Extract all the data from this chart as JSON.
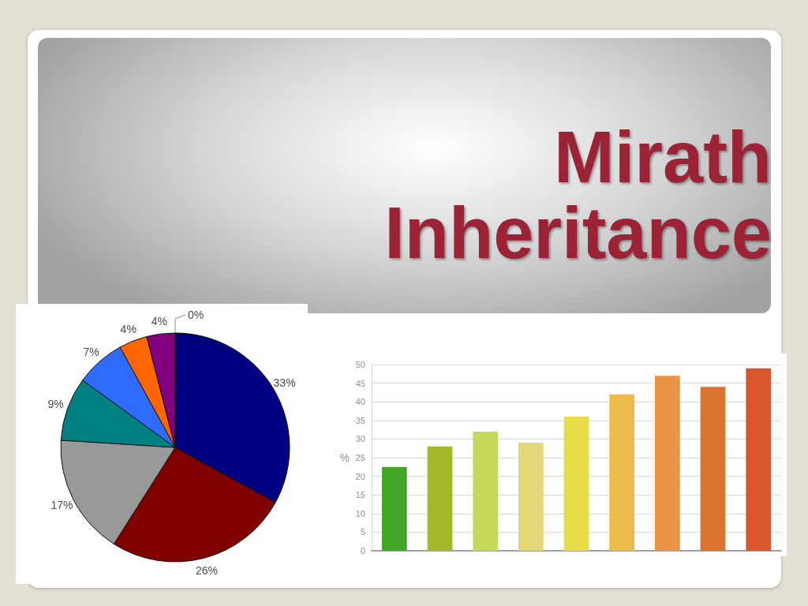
{
  "chart_data": [
    {
      "type": "pie",
      "title": "Mirath Inheritance",
      "categories": [
        null,
        null,
        null,
        null,
        null,
        null,
        null,
        null
      ],
      "values": [
        33,
        26,
        17,
        9,
        7,
        4,
        4,
        0
      ],
      "colors": [
        "#000080",
        "#800000",
        "#999999",
        "#008080",
        "#2f6bff",
        "#ff6600",
        "#800080",
        "#808080"
      ],
      "value_labels": [
        "33%",
        "26%",
        "17%",
        "9%",
        "7%",
        "4%",
        "4%",
        "0%"
      ]
    },
    {
      "type": "bar",
      "ylabel": "%",
      "categories": [
        null,
        null,
        null,
        null,
        null,
        null,
        null,
        null,
        null
      ],
      "values": [
        22.5,
        28,
        32,
        29,
        36,
        42,
        47,
        44,
        49
      ],
      "colors": [
        "#43a528",
        "#a5b82a",
        "#c8d85a",
        "#e2d878",
        "#e8dc48",
        "#ebbc48",
        "#ea9448",
        "#db7430",
        "#d9572f"
      ],
      "ylim": [
        0,
        50
      ],
      "yticks": [
        0,
        5,
        10,
        15,
        20,
        25,
        30,
        35,
        40,
        45,
        50
      ],
      "grid": "y",
      "tick_labels": "y"
    }
  ]
}
